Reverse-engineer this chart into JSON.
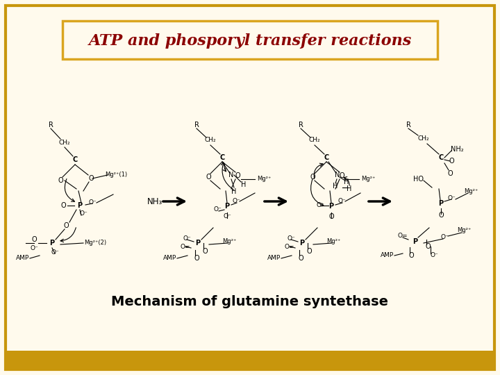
{
  "title": "ATP and phosporyl transfer reactions",
  "subtitle": "Mechanism of glutamine syntethase",
  "title_color": "#8B0000",
  "title_fontsize": 16,
  "subtitle_fontsize": 14,
  "background_color": "#FFFAED",
  "border_color": "#C8960C",
  "title_box_color": "#DAA520",
  "bottom_bar_color": "#C8960C",
  "fig_width": 7.2,
  "fig_height": 5.4,
  "nh3_label": "NH₃"
}
